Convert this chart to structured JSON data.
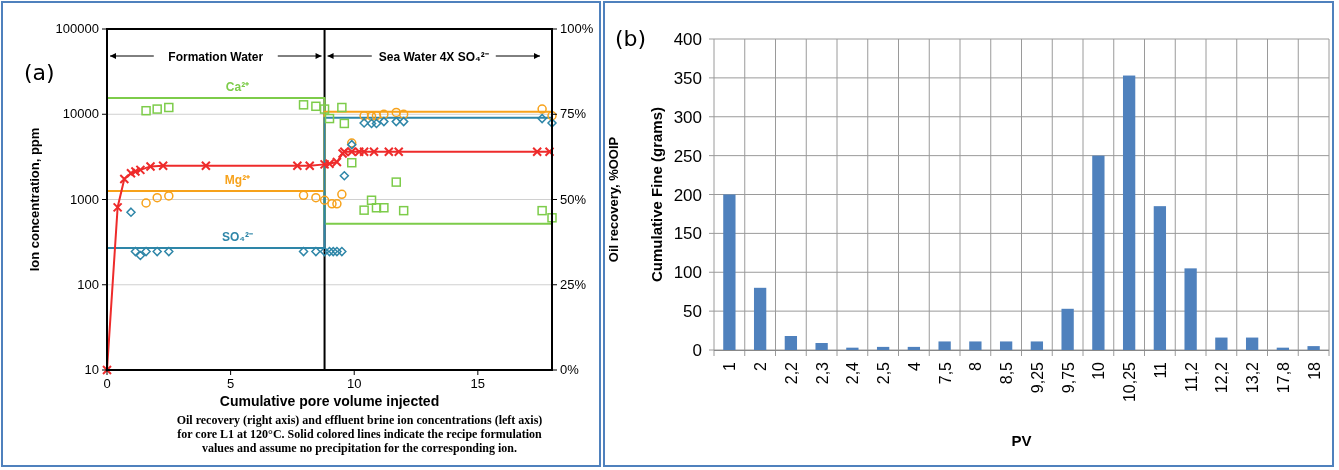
{
  "chart_data": [
    {
      "type": "scatter",
      "title": "(a)",
      "xlabel": "Cumulative pore volume injected",
      "ylabel": "Ion concentration, ppm",
      "y2label": "Oil recovery, %OOIP",
      "log": "y",
      "grid": "y",
      "xlim": [
        0,
        18
      ],
      "xticks": [
        0,
        5,
        10,
        15
      ],
      "ylim": [
        10,
        100000
      ],
      "yticks": [
        10,
        100,
        1000,
        10000,
        100000
      ],
      "y2lim": [
        0,
        100
      ],
      "y2ticks": [
        {
          "value": 0,
          "label": "0%"
        },
        {
          "value": 25,
          "label": "25%"
        },
        {
          "value": 50,
          "label": "50%"
        },
        {
          "value": 75,
          "label": "75%"
        },
        {
          "value": 100,
          "label": "100%"
        }
      ],
      "ref_lines": [
        {
          "axis": "x",
          "value": 8.8,
          "color": "#000000"
        }
      ],
      "annotations": [
        "Formation Water",
        "Sea Water 4X SO₄²⁻",
        "Oil recovery (right axis) and effluent brine ion concentrations (left axis) for core L1 at 120°C. Solid colored lines indicate the recipe formulation values and assume no precipitation for the corresponding ion."
      ],
      "series": [
        {
          "type": "line",
          "name": "Ca²⁺",
          "color": "#7dcc4a",
          "marker": "none",
          "x": [
            0,
            8.8,
            8.8,
            18
          ],
          "values": [
            15500,
            15500,
            520,
            520
          ]
        },
        {
          "type": "line",
          "name": "Mg²⁺",
          "color": "#f7a21b",
          "marker": "none",
          "x": [
            0,
            8.8,
            8.8,
            18
          ],
          "values": [
            1260,
            1260,
            10700,
            10700
          ]
        },
        {
          "type": "line",
          "name": "SO₄²⁻",
          "color": "#2e86a8",
          "marker": "none",
          "x": [
            0,
            8.8,
            8.8,
            18
          ],
          "values": [
            270,
            270,
            9100,
            9100
          ]
        },
        {
          "type": "scatter",
          "color": "#7dcc4a",
          "marker": "square",
          "x": [
            1.58,
            2.03,
            2.5,
            7.95,
            8.45,
            8.8,
            9.0,
            9.5,
            9.6,
            9.9,
            10.4,
            10.7,
            10.9,
            11.2,
            11.7,
            12.0,
            17.6,
            18.0
          ],
          "values": [
            11000,
            11500,
            12000,
            12900,
            12400,
            11500,
            8900,
            12000,
            7800,
            2700,
            750,
            980,
            800,
            800,
            1600,
            740,
            740,
            610
          ]
        },
        {
          "type": "scatter",
          "color": "#f7a21b",
          "marker": "circle",
          "x": [
            1.58,
            2.03,
            2.5,
            7.95,
            8.45,
            8.8,
            9.1,
            9.3,
            9.5,
            9.9,
            10.4,
            10.7,
            10.9,
            11.2,
            11.7,
            12.0,
            17.6,
            18.0
          ],
          "values": [
            910,
            1050,
            1100,
            1120,
            1050,
            980,
            890,
            890,
            1150,
            4600,
            9600,
            9500,
            9600,
            10000,
            10500,
            10000,
            11500,
            9600
          ]
        },
        {
          "type": "scatter",
          "color": "#2e86a8",
          "marker": "diamond",
          "x": [
            0.97,
            1.15,
            1.35,
            1.58,
            2.03,
            2.5,
            7.95,
            8.45,
            8.8,
            9.0,
            9.15,
            9.3,
            9.5,
            9.6,
            9.9,
            10.4,
            10.7,
            10.9,
            11.2,
            11.7,
            12.0,
            17.6,
            18.0
          ],
          "values": [
            710,
            245,
            220,
            245,
            245,
            245,
            245,
            245,
            245,
            245,
            245,
            245,
            245,
            1900,
            4400,
            7900,
            7800,
            7800,
            8200,
            8200,
            8200,
            8900,
            7900
          ]
        },
        {
          "type": "line",
          "axis": "y2",
          "color": "#ee2b2b",
          "marker": "cross",
          "line_style": "solid",
          "x": [
            0,
            0.43,
            0.7,
            0.97,
            1.15,
            1.35,
            1.76,
            2.27,
            4.0,
            7.7,
            8.2,
            8.8,
            9.0,
            9.3,
            9.53,
            9.6,
            9.9,
            10.2,
            10.4,
            10.8,
            11.4,
            11.8,
            17.4,
            17.9
          ],
          "values": [
            0,
            47.7,
            56,
            57.7,
            58.2,
            58.7,
            59.7,
            59.9,
            59.9,
            59.9,
            59.9,
            60.3,
            60.5,
            61,
            63.5,
            64,
            64,
            64,
            64,
            64,
            64,
            64,
            64,
            64
          ]
        }
      ]
    },
    {
      "type": "bar",
      "title": "(b)",
      "xlabel": "PV",
      "ylabel": "Cumulative Fine (grams)",
      "grid": true,
      "categories": [
        "1",
        "2",
        "2,2",
        "2,3",
        "2,4",
        "2,5",
        "4",
        "7,5",
        "8",
        "8,5",
        "9,25",
        "9,75",
        "10",
        "10,25",
        "11",
        "11,2",
        "12,2",
        "13,2",
        "17,8",
        "18"
      ],
      "values": [
        200,
        80,
        18,
        9,
        3,
        4,
        4,
        11,
        11,
        11,
        11,
        53,
        250,
        353,
        185,
        105,
        16,
        16,
        3,
        5
      ],
      "color": "#4f81bd",
      "ylim": [
        0,
        400
      ],
      "yticks": [
        0,
        50,
        100,
        150,
        200,
        250,
        300,
        350,
        400
      ]
    }
  ]
}
